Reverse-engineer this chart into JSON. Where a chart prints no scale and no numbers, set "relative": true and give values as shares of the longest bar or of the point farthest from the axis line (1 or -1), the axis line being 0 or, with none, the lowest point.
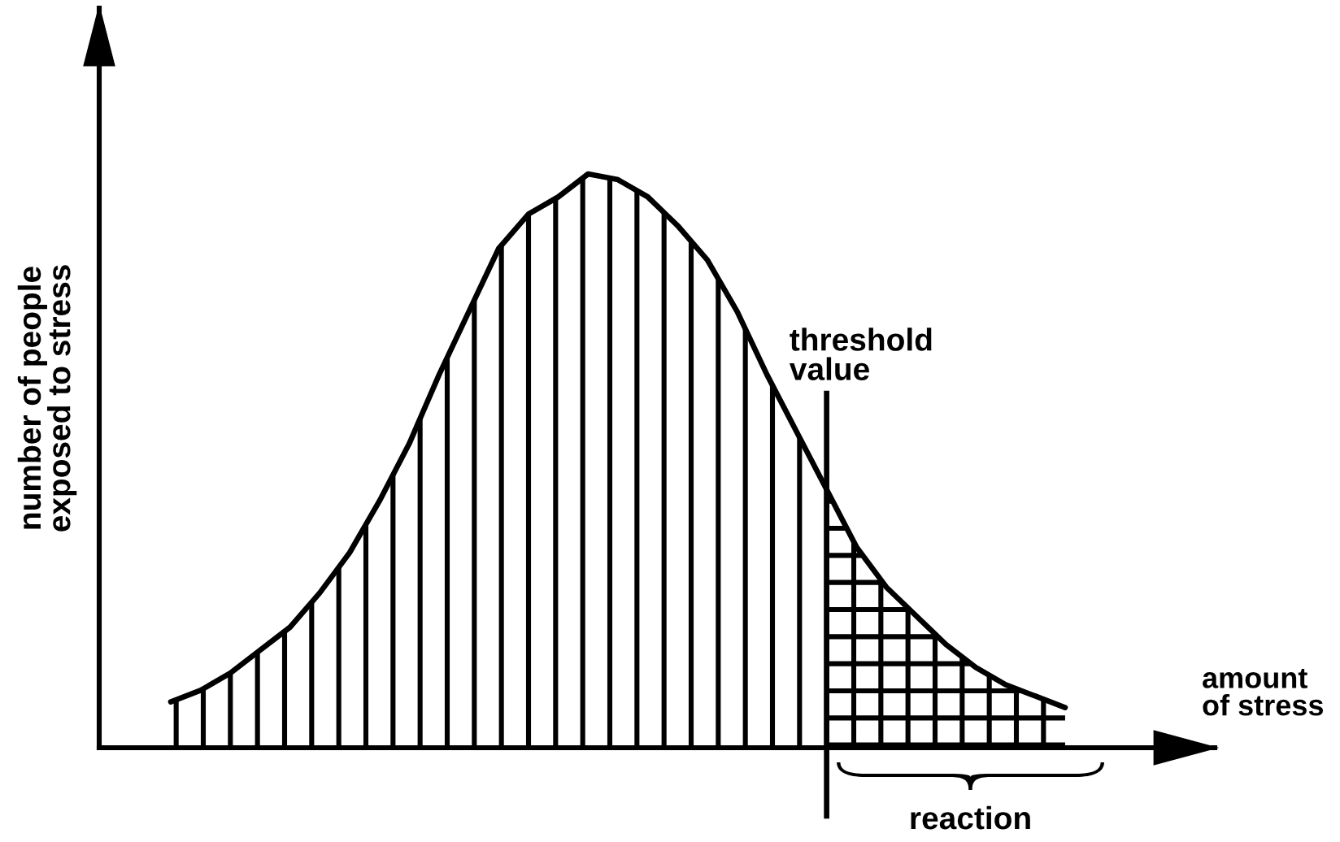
{
  "chart_data": {
    "type": "area",
    "relative": true,
    "xlabel": "amount\nof stress",
    "ylabel": "number of people\nexposed to stress",
    "categories": [
      null,
      null,
      null,
      null,
      null,
      null,
      null,
      null,
      null,
      null,
      null,
      null,
      null,
      null,
      null,
      null,
      null,
      null,
      null,
      null,
      null,
      null,
      null,
      null,
      null,
      null,
      null,
      null,
      null,
      null,
      null
    ],
    "series": [
      {
        "color": "#000000",
        "values": [
          0.08,
          0.1,
          0.13,
          0.17,
          0.21,
          0.27,
          0.34,
          0.43,
          0.53,
          0.65,
          0.76,
          0.87,
          0.93,
          0.96,
          1,
          0.99,
          0.96,
          0.91,
          0.85,
          0.76,
          0.65,
          0.55,
          0.45,
          null,
          null,
          null,
          null,
          null,
          null,
          null,
          null
        ]
      },
      {
        "color": "#000000",
        "values": [
          null,
          null,
          null,
          null,
          null,
          null,
          null,
          null,
          null,
          null,
          null,
          null,
          null,
          null,
          null,
          null,
          null,
          null,
          null,
          null,
          null,
          null,
          0.45,
          0.35,
          0.28,
          0.23,
          0.18,
          0.14,
          0.11,
          0.09,
          0.07
        ]
      }
    ],
    "annotations": [
      "threshold\nvalue",
      "reaction"
    ]
  }
}
